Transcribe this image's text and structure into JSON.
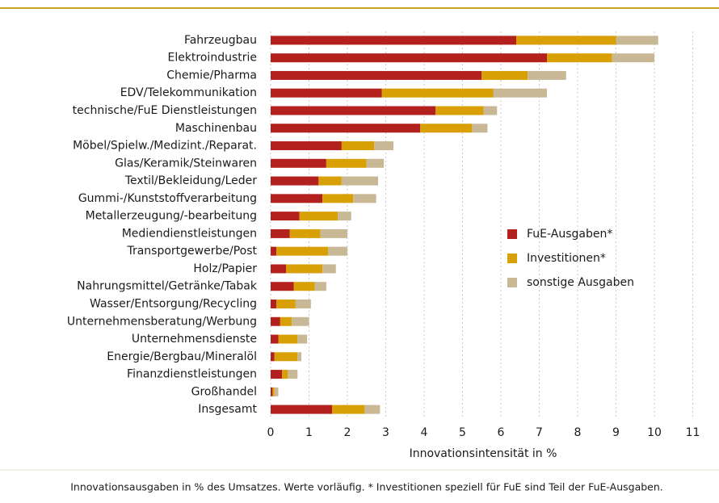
{
  "chart_data": {
    "type": "stacked-barh",
    "categories": [
      "Fahrzeugbau",
      "Elektroindustrie",
      "Chemie/Pharma",
      "EDV/Telekommunikation",
      "technische/FuE Dienstleistungen",
      "Maschinenbau",
      "Möbel/Spielw./Medizint./Reparat.",
      "Glas/Keramik/Steinwaren",
      "Textil/Bekleidung/Leder",
      "Gummi-/Kunststoffverarbeitung",
      "Metallerzeugung/-bearbeitung",
      "Mediendienstleistungen",
      "Transportgewerbe/Post",
      "Holz/Papier",
      "Nahrungsmittel/Getränke/Tabak",
      "Wasser/Entsorgung/Recycling",
      "Unternehmensberatung/Werbung",
      "Unternehmensdienste",
      "Energie/Bergbau/Mineralöl",
      "Finanzdienstleistungen",
      "Großhandel",
      "Insgesamt"
    ],
    "series": [
      {
        "name": "FuE-Ausgaben*",
        "color": "#b3211f",
        "values": [
          6.4,
          7.2,
          5.5,
          2.9,
          4.3,
          3.9,
          1.85,
          1.45,
          1.25,
          1.35,
          0.75,
          0.5,
          0.15,
          0.4,
          0.6,
          0.15,
          0.25,
          0.2,
          0.1,
          0.3,
          0.05,
          1.6
        ]
      },
      {
        "name": "Investitionen*",
        "color": "#d9a005",
        "values": [
          2.6,
          1.7,
          1.2,
          2.9,
          1.25,
          1.35,
          0.85,
          1.05,
          0.6,
          0.8,
          1.0,
          0.8,
          1.35,
          0.95,
          0.55,
          0.5,
          0.3,
          0.5,
          0.6,
          0.15,
          0.05,
          0.85
        ]
      },
      {
        "name": "sonstige Ausgaben",
        "color": "#c8b896",
        "values": [
          1.1,
          1.1,
          1.0,
          1.4,
          0.35,
          0.4,
          0.5,
          0.45,
          0.95,
          0.6,
          0.35,
          0.7,
          0.5,
          0.35,
          0.3,
          0.4,
          0.45,
          0.25,
          0.1,
          0.25,
          0.1,
          0.4
        ]
      }
    ],
    "xlim": [
      0,
      11
    ],
    "xticks": [
      0,
      1,
      2,
      3,
      4,
      5,
      6,
      7,
      8,
      9,
      10,
      11
    ],
    "xlabel": "Innovationsintensität in %",
    "grid": true,
    "legend": "right",
    "footnote": "Innovationsausgaben in % des Umsatzes. Werte vorläufig. * Investitionen speziell für FuE sind Teil der FuE-Ausgaben."
  }
}
